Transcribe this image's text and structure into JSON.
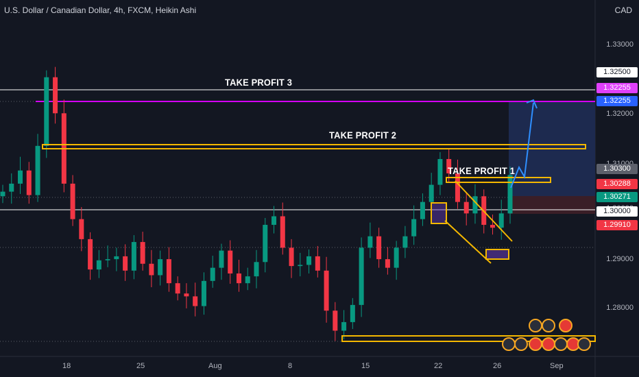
{
  "header": {
    "title": "U.S. Dollar / Canadian Dollar, 4h, FXCM, Heikin Ashi",
    "currency": "CAD"
  },
  "annotations": [
    {
      "key": "tp3",
      "text": "TAKE PROFIT 3"
    },
    {
      "key": "tp2",
      "text": "TAKE PROFIT 2"
    },
    {
      "key": "tp1",
      "text": "TAKE PROFIT 1"
    }
  ],
  "price_labels": [
    {
      "text": "1.32500",
      "bg": "#ffffff",
      "fg": "#131722"
    },
    {
      "text": "1.32255",
      "bg": "#e040fb",
      "fg": "#ffffff"
    },
    {
      "text": "1.32255",
      "bg": "#2962ff",
      "fg": "#ffffff"
    },
    {
      "text": "1.30300",
      "bg": "#5d606b",
      "fg": "#ffffff"
    },
    {
      "text": "1.30288",
      "bg": "#f23645",
      "fg": "#ffffff"
    },
    {
      "text": "1.30271",
      "bg": "#089981",
      "fg": "#ffffff"
    },
    {
      "text": "1.30000",
      "bg": "#ffffff",
      "fg": "#131722"
    },
    {
      "text": "1.29910",
      "bg": "#f23645",
      "fg": "#ffffff"
    }
  ],
  "chart_data": {
    "type": "candlestick",
    "title": "U.S. Dollar / Canadian Dollar, 4h, FXCM, Heikin Ashi",
    "y_ticks": [
      "1.33000",
      "1.32000",
      "1.31000",
      "1.30000",
      "1.29000",
      "1.28000"
    ],
    "x_ticks": [
      "18",
      "25",
      "Aug",
      "8",
      "15",
      "22",
      "26",
      "Sep"
    ],
    "ylim": [
      1.271,
      1.3333
    ],
    "levels": {
      "tp3": 1.325,
      "tp2": 1.3142,
      "tp1": 1.305,
      "entry": 1.3,
      "stop": 1.2991,
      "target": 1.32255
    },
    "series": [
      {
        "name": "close",
        "values": [
          1.2998,
          1.3012,
          1.3035,
          1.2992,
          1.3078,
          1.3198,
          1.3135,
          1.3012,
          1.295,
          1.2915,
          1.2862,
          1.2878,
          1.288,
          1.2885,
          1.286,
          1.291,
          1.2872,
          1.2852,
          1.288,
          1.2838,
          1.282,
          1.2815,
          1.2798,
          1.2842,
          1.2865,
          1.2895,
          1.2855,
          1.2838,
          1.285,
          1.2875,
          1.294,
          1.2955,
          1.29,
          1.2868,
          1.287,
          1.2885,
          1.286,
          1.279,
          1.2755,
          1.277,
          1.28,
          1.29,
          1.292,
          1.288,
          1.2865,
          1.29,
          1.292,
          1.295,
          1.298,
          1.301,
          1.3055,
          1.303,
          1.298,
          1.296,
          1.299,
          1.294,
          1.2935,
          1.296,
          1.3027
        ]
      }
    ]
  }
}
